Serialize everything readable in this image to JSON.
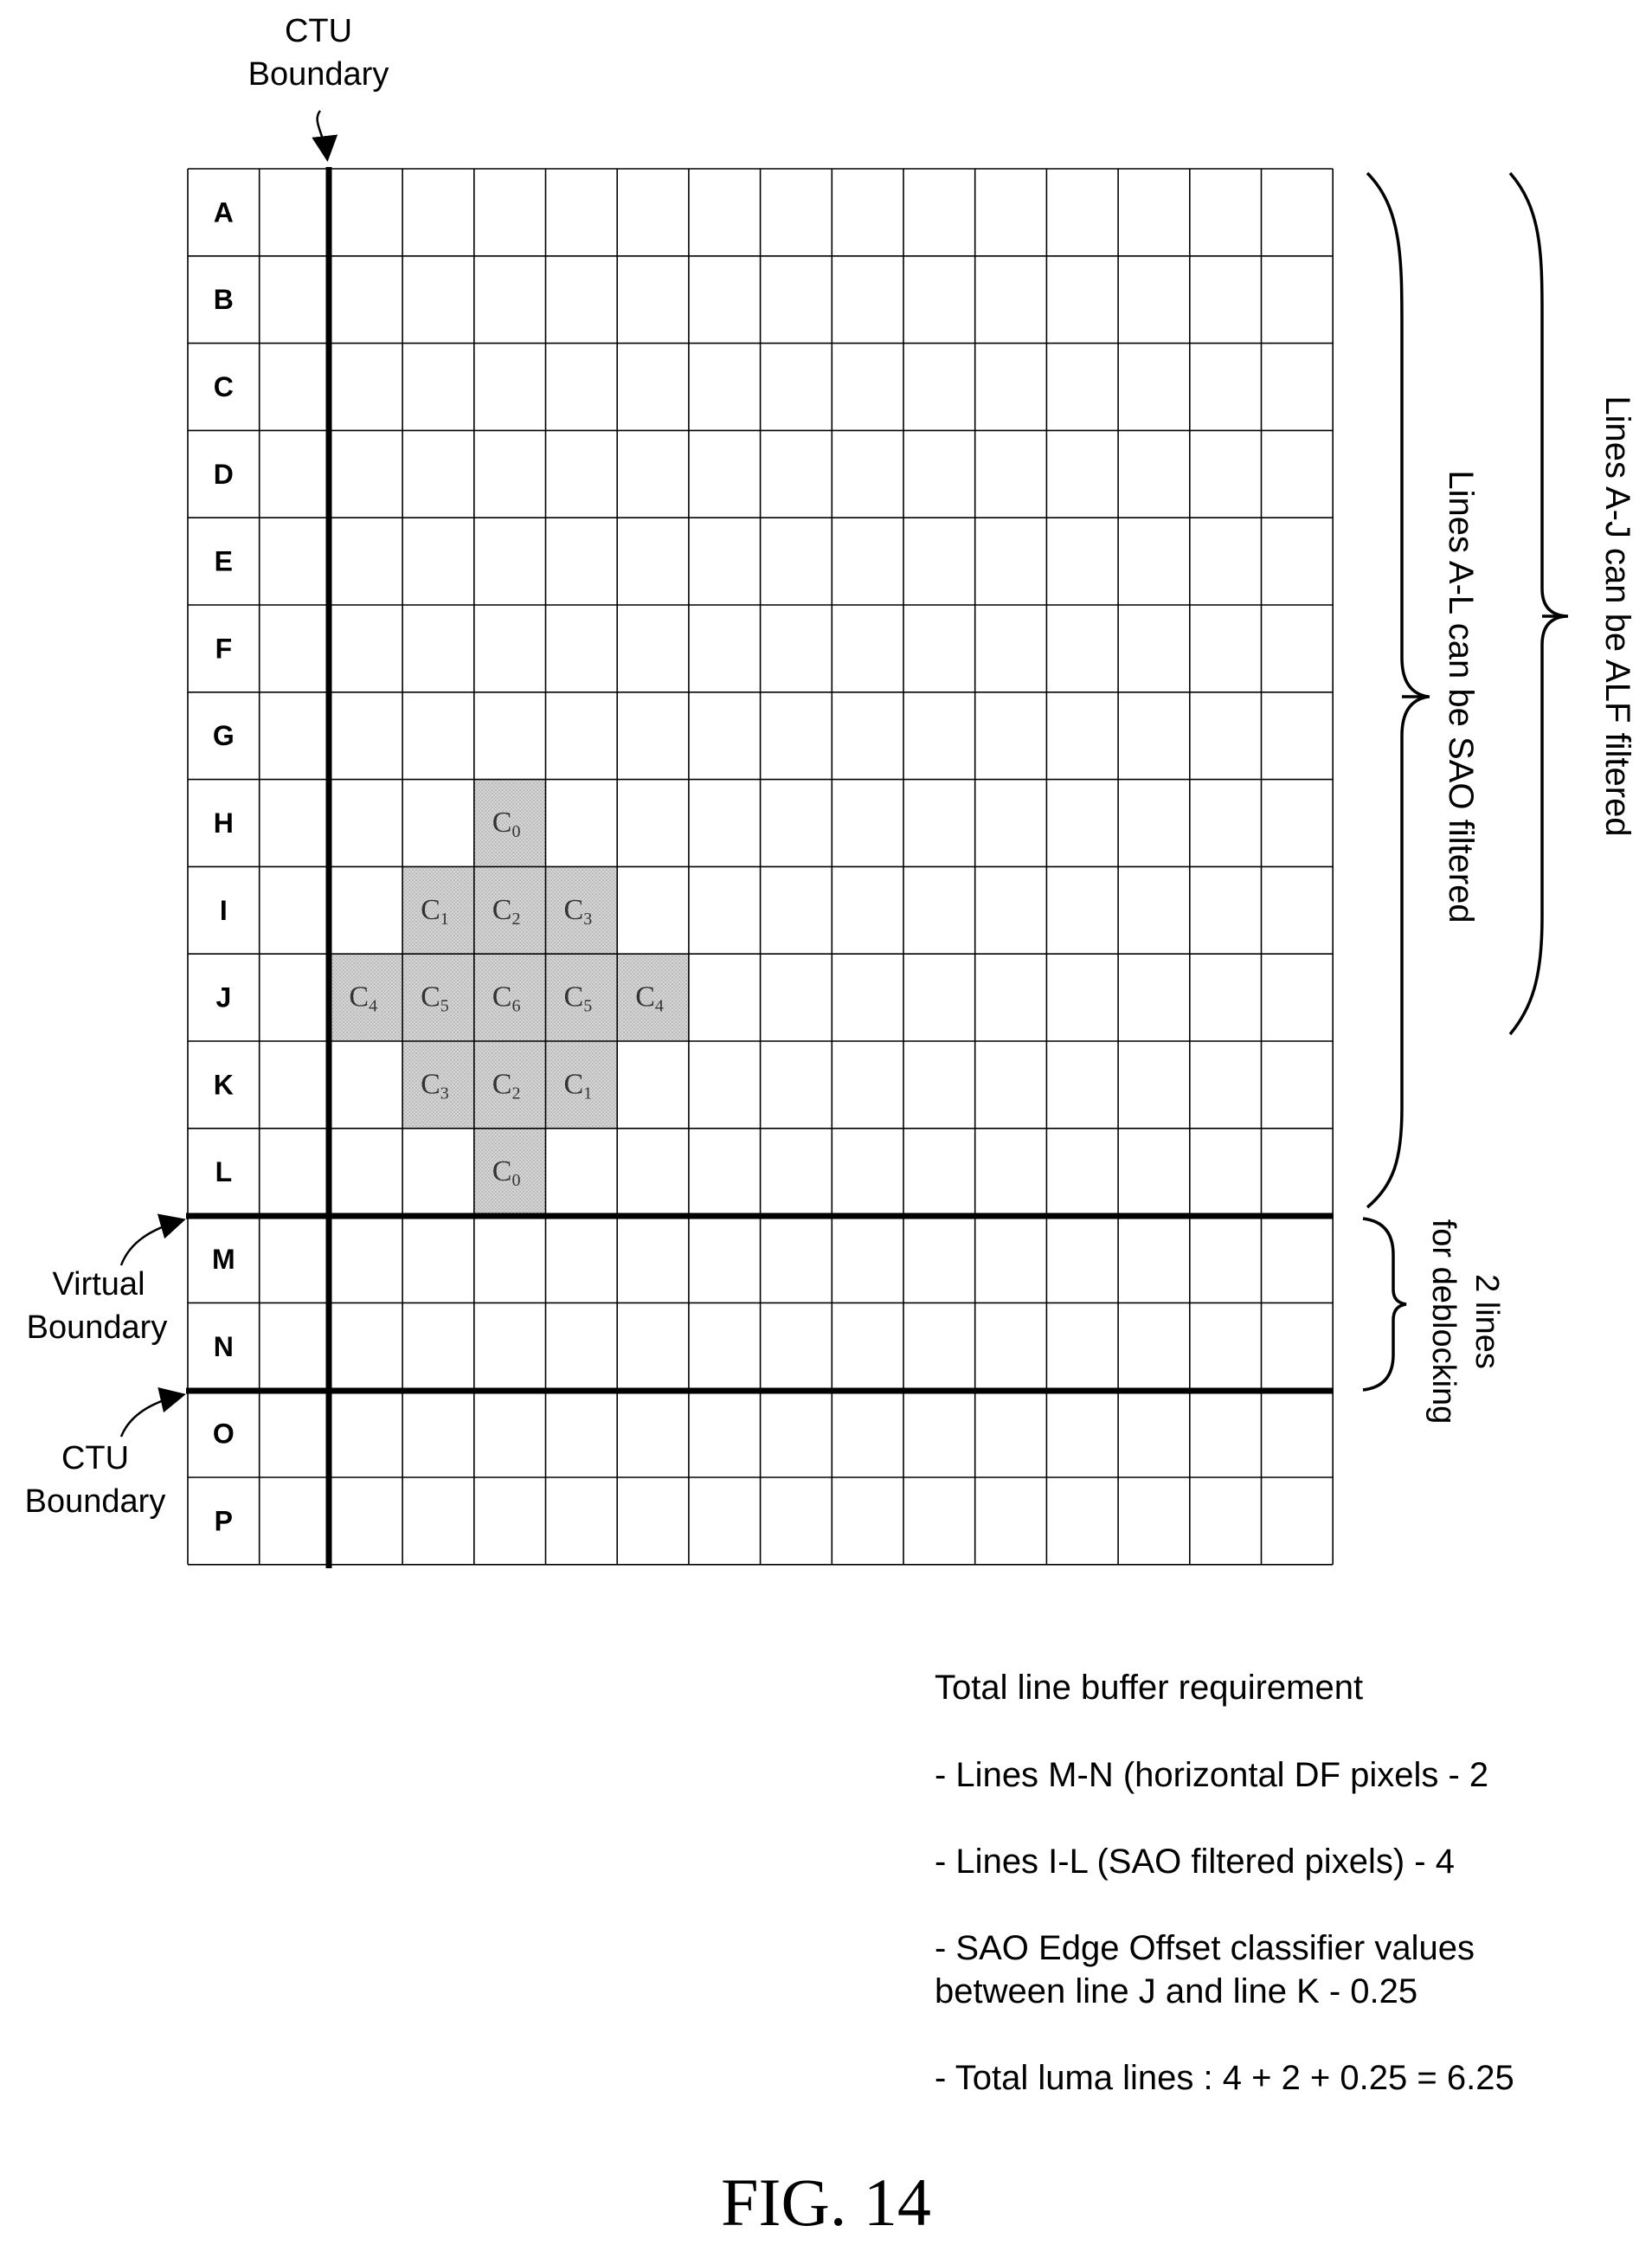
{
  "labels": {
    "ctu_boundary_top": [
      "CTU",
      "Boundary"
    ],
    "virtual_boundary": [
      "Virtual",
      "Boundary"
    ],
    "ctu_boundary_bottom": [
      "CTU",
      "Boundary"
    ],
    "sao_brace": "Lines A-L can be SAO filtered",
    "alf_brace": "Lines A-J can be ALF filtered",
    "deblock_brace": [
      "2 lines",
      "for deblocking"
    ]
  },
  "grid": {
    "rows": [
      "A",
      "B",
      "C",
      "D",
      "E",
      "F",
      "G",
      "H",
      "I",
      "J",
      "K",
      "L",
      "M",
      "N",
      "O",
      "P"
    ],
    "shaded_cells": [
      {
        "row": "H",
        "col": 4,
        "coef": "C",
        "sub": "0"
      },
      {
        "row": "I",
        "col": 3,
        "coef": "C",
        "sub": "1"
      },
      {
        "row": "I",
        "col": 4,
        "coef": "C",
        "sub": "2"
      },
      {
        "row": "I",
        "col": 5,
        "coef": "C",
        "sub": "3"
      },
      {
        "row": "J",
        "col": 2,
        "coef": "C",
        "sub": "4"
      },
      {
        "row": "J",
        "col": 3,
        "coef": "C",
        "sub": "5"
      },
      {
        "row": "J",
        "col": 4,
        "coef": "C",
        "sub": "6"
      },
      {
        "row": "J",
        "col": 5,
        "coef": "C",
        "sub": "5"
      },
      {
        "row": "J",
        "col": 6,
        "coef": "C",
        "sub": "4"
      },
      {
        "row": "K",
        "col": 3,
        "coef": "C",
        "sub": "3"
      },
      {
        "row": "K",
        "col": 4,
        "coef": "C",
        "sub": "2"
      },
      {
        "row": "K",
        "col": 5,
        "coef": "C",
        "sub": "1"
      },
      {
        "row": "L",
        "col": 4,
        "coef": "C",
        "sub": "0"
      }
    ]
  },
  "notes": {
    "title": "Total line buffer requirement",
    "items": [
      "- Lines M-N (horizontal DF pixels - 2",
      "- Lines I-L (SAO filtered pixels) - 4",
      "- SAO Edge Offset classifier values\nbetween line J and line K - 0.25",
      "- Total luma lines : 4 + 2 + 0.25 = 6.25"
    ]
  },
  "figure_label": "FIG. 14"
}
